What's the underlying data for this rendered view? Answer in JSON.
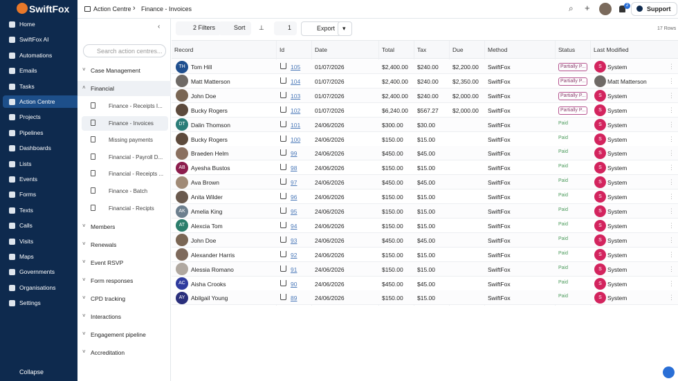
{
  "sidebar": {
    "logo": "SwiftFox",
    "items": [
      "Home",
      "SwiftFox AI",
      "Automations",
      "Emails",
      "Tasks",
      "Action Centre",
      "Projects",
      "Pipelines",
      "Dashboards",
      "Lists",
      "Events",
      "Forms",
      "Texts",
      "Calls",
      "Visits",
      "Maps",
      "Governments",
      "Organisations",
      "Settings"
    ],
    "active": 5,
    "collapse": "Collapse"
  },
  "header": {
    "breadcrumb": [
      "Action Centre",
      "Finance - Invoices"
    ],
    "notifications": "2",
    "support": "Support"
  },
  "panel": {
    "search": "Search action centres...",
    "groups": [
      {
        "label": "Case Management"
      },
      {
        "label": "Financial",
        "expanded": true,
        "children": [
          "Finance - Receipts I...",
          "Finance - Invoices",
          "Missing payments",
          "Financial - Payroll D...",
          "Financial - Receipts ...",
          "Finance - Batch",
          "Financial - Recipts"
        ],
        "selected": 1
      },
      {
        "label": "Members"
      },
      {
        "label": "Renewals"
      },
      {
        "label": "Event RSVP"
      },
      {
        "label": "Form responses"
      },
      {
        "label": "CPD tracking"
      },
      {
        "label": "Interactions"
      },
      {
        "label": "Engagement pipeline"
      },
      {
        "label": "Accreditation"
      }
    ]
  },
  "toolbar": {
    "filters": "2 Filters",
    "sort": "Sort",
    "hidden": "1",
    "export": "Export",
    "rows": "17 Rows"
  },
  "table": {
    "columns": [
      "Record",
      "Id",
      "Date",
      "Total",
      "Tax",
      "Due",
      "Method",
      "Status",
      "Last Modified"
    ],
    "rows": [
      {
        "record": "Tom Hill",
        "initials": "TH",
        "color": "#1f4f8f",
        "id": "105",
        "date": "01/07/2026",
        "total": "$2,400.00",
        "tax": "$240.00",
        "due": "$2,200.00",
        "method": "SwiftFox",
        "status": "Partially P...",
        "mod_initial": "S",
        "modified": "System"
      },
      {
        "record": "Matt Matterson",
        "color": "#6f6a66",
        "id": "104",
        "date": "01/07/2026",
        "total": "$2,400.00",
        "tax": "$240.00",
        "due": "$2,350.00",
        "method": "SwiftFox",
        "status": "Partially P...",
        "modified": "Matt Matterson"
      },
      {
        "record": "John Doe",
        "color": "#7a6654",
        "id": "103",
        "date": "01/07/2026",
        "total": "$2,400.00",
        "tax": "$240.00",
        "due": "$2,000.00",
        "method": "SwiftFox",
        "status": "Partially P...",
        "mod_initial": "S",
        "modified": "System"
      },
      {
        "record": "Bucky Rogers",
        "color": "#5d4a3c",
        "id": "102",
        "date": "01/07/2026",
        "total": "$6,240.00",
        "tax": "$567.27",
        "due": "$2,000.00",
        "method": "SwiftFox",
        "status": "Partially P...",
        "mod_initial": "S",
        "modified": "System"
      },
      {
        "record": "Dalin Thomson",
        "initials": "DT",
        "color": "#2b7d78",
        "id": "101",
        "date": "24/06/2026",
        "total": "$300.00",
        "tax": "$30.00",
        "due": null,
        "method": "SwiftFox",
        "status": "Paid",
        "mod_initial": "S",
        "modified": "System"
      },
      {
        "record": "Bucky Rogers",
        "color": "#5d4a3c",
        "id": "100",
        "date": "24/06/2026",
        "total": "$150.00",
        "tax": "$15.00",
        "due": null,
        "method": "SwiftFox",
        "status": "Paid",
        "mod_initial": "S",
        "modified": "System"
      },
      {
        "record": "Braeden Helm",
        "color": "#8a7060",
        "id": "99",
        "date": "24/06/2026",
        "total": "$450.00",
        "tax": "$45.00",
        "due": null,
        "method": "SwiftFox",
        "status": "Paid",
        "mod_initial": "S",
        "modified": "System"
      },
      {
        "record": "Ayesha Bustos",
        "initials": "AB",
        "color": "#8c1d4d",
        "id": "98",
        "date": "24/06/2026",
        "total": "$150.00",
        "tax": "$15.00",
        "due": null,
        "method": "SwiftFox",
        "status": "Paid",
        "mod_initial": "S",
        "modified": "System"
      },
      {
        "record": "Ava Brown",
        "color": "#a08a76",
        "id": "97",
        "date": "24/06/2026",
        "total": "$450.00",
        "tax": "$45.00",
        "due": null,
        "method": "SwiftFox",
        "status": "Paid",
        "mod_initial": "S",
        "modified": "System"
      },
      {
        "record": "Anita Wilder",
        "color": "#6a5a4e",
        "id": "96",
        "date": "24/06/2026",
        "total": "$150.00",
        "tax": "$15.00",
        "due": null,
        "method": "SwiftFox",
        "status": "Paid",
        "mod_initial": "S",
        "modified": "System"
      },
      {
        "record": "Amelia King",
        "initials": "AK",
        "color": "#6c7f8e",
        "id": "95",
        "date": "24/06/2026",
        "total": "$150.00",
        "tax": "$15.00",
        "due": null,
        "method": "SwiftFox",
        "status": "Paid",
        "mod_initial": "S",
        "modified": "System"
      },
      {
        "record": "Alexcia Tom",
        "initials": "AT",
        "color": "#2c7e6c",
        "id": "94",
        "date": "24/06/2026",
        "total": "$150.00",
        "tax": "$15.00",
        "due": null,
        "method": "SwiftFox",
        "status": "Paid",
        "mod_initial": "S",
        "modified": "System"
      },
      {
        "record": "John Doe",
        "color": "#7a6654",
        "id": "93",
        "date": "24/06/2026",
        "total": "$450.00",
        "tax": "$45.00",
        "due": null,
        "method": "SwiftFox",
        "status": "Paid",
        "mod_initial": "S",
        "modified": "System"
      },
      {
        "record": "Alexander Harris",
        "color": "#7e6a5c",
        "id": "92",
        "date": "24/06/2026",
        "total": "$150.00",
        "tax": "$15.00",
        "due": null,
        "method": "SwiftFox",
        "status": "Paid",
        "mod_initial": "S",
        "modified": "System"
      },
      {
        "record": "Alessia Romano",
        "color": "#b0a8a0",
        "id": "91",
        "date": "24/06/2026",
        "total": "$150.00",
        "tax": "$15.00",
        "due": null,
        "method": "SwiftFox",
        "status": "Paid",
        "mod_initial": "S",
        "modified": "System"
      },
      {
        "record": "Aisha Crooks",
        "initials": "AC",
        "color": "#2f3b9e",
        "id": "90",
        "date": "24/06/2026",
        "total": "$450.00",
        "tax": "$45.00",
        "due": null,
        "method": "SwiftFox",
        "status": "Paid",
        "mod_initial": "S",
        "modified": "System"
      },
      {
        "record": "Abilgail Young",
        "initials": "AY",
        "color": "#2a2f7c",
        "id": "89",
        "date": "24/06/2026",
        "total": "$150.00",
        "tax": "$15.00",
        "due": null,
        "method": "SwiftFox",
        "status": "Paid",
        "mod_initial": "S",
        "modified": "System"
      }
    ]
  }
}
